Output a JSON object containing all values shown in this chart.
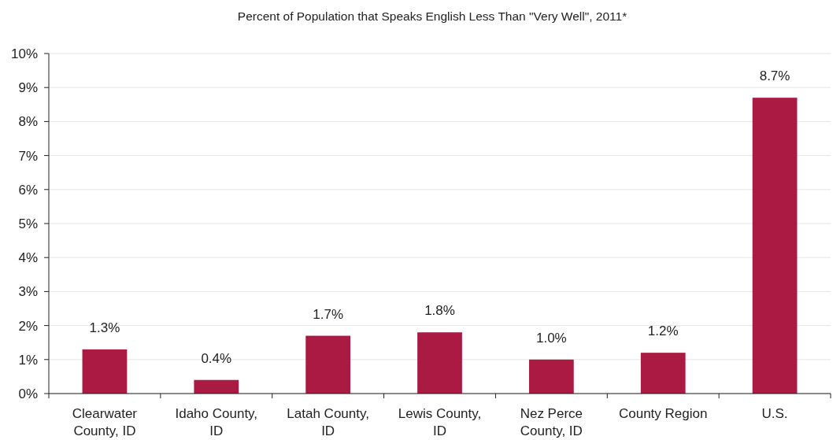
{
  "chart_data": {
    "type": "bar",
    "title": "Percent of Population that Speaks English Less Than \"Very Well\", 2011*",
    "categories": [
      "Clearwater County, ID",
      "Idaho County, ID",
      "Latah County, ID",
      "Lewis County, ID",
      "Nez Perce County, ID",
      "County Region",
      "U.S."
    ],
    "values": [
      1.3,
      0.4,
      1.7,
      1.8,
      1.0,
      1.2,
      8.7
    ],
    "value_labels": [
      "1.3%",
      "0.4%",
      "1.7%",
      "1.8%",
      "1.0%",
      "1.2%",
      "8.7%"
    ],
    "color": "#ab1a43",
    "ylim": [
      0,
      10
    ],
    "yticks": [
      {
        "value": 0,
        "label": "0%"
      },
      {
        "value": 1,
        "label": "1%"
      },
      {
        "value": 2,
        "label": "2%"
      },
      {
        "value": 3,
        "label": "3%"
      },
      {
        "value": 4,
        "label": "4%"
      },
      {
        "value": 5,
        "label": "5%"
      },
      {
        "value": 6,
        "label": "6%"
      },
      {
        "value": 7,
        "label": "7%"
      },
      {
        "value": 8,
        "label": "8%"
      },
      {
        "value": 9,
        "label": "9%"
      },
      {
        "value": 10,
        "label": "10%"
      }
    ],
    "grid": "y"
  }
}
